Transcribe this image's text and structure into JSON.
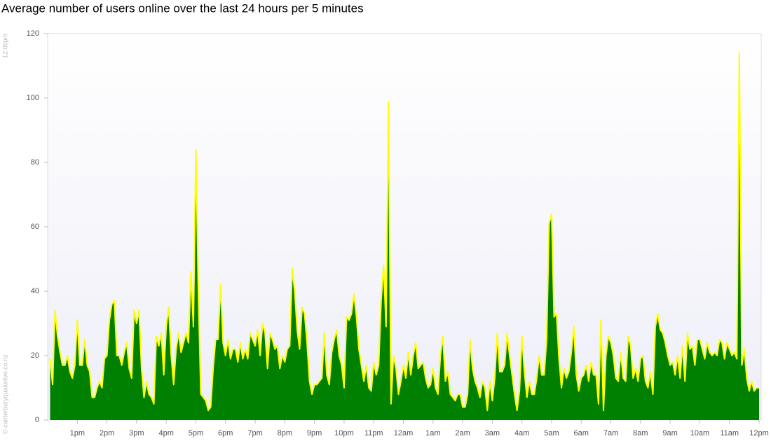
{
  "chart_data": {
    "type": "area",
    "title": "Average number of users online over the last 24 hours per 5 minutes",
    "timestamp": "12:05pm",
    "credit": "© canterburyquakelive.co.nz",
    "color": "#008000",
    "line_color": "#ffff00",
    "ylim": [
      0,
      120
    ],
    "yticks": [
      0,
      20,
      40,
      60,
      80,
      100,
      120
    ],
    "categories": [
      null,
      null,
      null,
      null,
      null,
      null,
      null,
      null,
      null,
      null,
      null,
      "1pm",
      null,
      null,
      null,
      null,
      null,
      null,
      null,
      null,
      null,
      null,
      null,
      "2pm",
      null,
      null,
      null,
      null,
      null,
      null,
      null,
      null,
      null,
      null,
      null,
      "3pm",
      null,
      null,
      null,
      null,
      null,
      null,
      null,
      null,
      null,
      null,
      null,
      "4pm",
      null,
      null,
      null,
      null,
      null,
      null,
      null,
      null,
      null,
      null,
      null,
      "5pm",
      null,
      null,
      null,
      null,
      null,
      null,
      null,
      null,
      null,
      null,
      null,
      "6pm",
      null,
      null,
      null,
      null,
      null,
      null,
      null,
      null,
      null,
      null,
      null,
      "7pm",
      null,
      null,
      null,
      null,
      null,
      null,
      null,
      null,
      null,
      null,
      null,
      "8pm",
      null,
      null,
      null,
      null,
      null,
      null,
      null,
      null,
      null,
      null,
      null,
      "9pm",
      null,
      null,
      null,
      null,
      null,
      null,
      null,
      null,
      null,
      null,
      null,
      "10pm",
      null,
      null,
      null,
      null,
      null,
      null,
      null,
      null,
      null,
      null,
      null,
      "11pm",
      null,
      null,
      null,
      null,
      null,
      null,
      null,
      null,
      null,
      null,
      null,
      "12am",
      null,
      null,
      null,
      null,
      null,
      null,
      null,
      null,
      null,
      null,
      null,
      "1am",
      null,
      null,
      null,
      null,
      null,
      null,
      null,
      null,
      null,
      null,
      null,
      "2am",
      null,
      null,
      null,
      null,
      null,
      null,
      null,
      null,
      null,
      null,
      null,
      "3am",
      null,
      null,
      null,
      null,
      null,
      null,
      null,
      null,
      null,
      null,
      null,
      "4am",
      null,
      null,
      null,
      null,
      null,
      null,
      null,
      null,
      null,
      null,
      null,
      "5am",
      null,
      null,
      null,
      null,
      null,
      null,
      null,
      null,
      null,
      null,
      null,
      "6am",
      null,
      null,
      null,
      null,
      null,
      null,
      null,
      null,
      null,
      null,
      null,
      "7am",
      null,
      null,
      null,
      null,
      null,
      null,
      null,
      null,
      null,
      null,
      null,
      "8am",
      null,
      null,
      null,
      null,
      null,
      null,
      null,
      null,
      null,
      null,
      null,
      "9am",
      null,
      null,
      null,
      null,
      null,
      null,
      null,
      null,
      null,
      null,
      null,
      "10am",
      null,
      null,
      null,
      null,
      null,
      null,
      null,
      null,
      null,
      null,
      null,
      "11am",
      null,
      null,
      null,
      null,
      null,
      null,
      null,
      null,
      null,
      null,
      null,
      "12pm"
    ],
    "values": [
      19,
      11,
      34,
      26,
      21,
      17,
      17,
      20,
      15,
      13,
      17,
      31,
      17,
      17,
      25,
      17,
      15,
      7,
      7,
      10,
      12,
      10,
      19,
      20,
      31,
      36,
      37,
      20,
      20,
      17,
      21,
      24,
      16,
      13,
      34,
      30,
      34,
      16,
      7,
      12,
      8,
      7,
      5,
      26,
      23,
      27,
      14,
      29,
      35,
      20,
      11,
      22,
      27,
      21,
      24,
      27,
      24,
      46,
      29,
      84,
      40,
      8,
      7,
      6,
      3,
      4,
      16,
      25,
      25,
      42,
      24,
      20,
      25,
      19,
      22,
      22,
      18,
      24,
      19,
      22,
      19,
      27,
      25,
      23,
      28,
      20,
      30,
      27,
      16,
      27,
      25,
      22,
      23,
      16,
      20,
      18,
      22,
      23,
      47,
      40,
      28,
      22,
      35,
      33,
      24,
      12,
      8,
      11,
      11,
      12,
      13,
      27,
      14,
      11,
      21,
      25,
      28,
      20,
      17,
      10,
      32,
      31,
      33,
      39,
      32,
      22,
      17,
      12,
      17,
      10,
      9,
      18,
      14,
      17,
      37,
      48,
      29,
      99,
      5,
      20,
      16,
      8,
      12,
      17,
      13,
      21,
      14,
      20,
      24,
      16,
      17,
      18,
      13,
      10,
      11,
      16,
      10,
      8,
      20,
      26,
      12,
      15,
      8,
      7,
      6,
      8,
      8,
      4,
      4,
      8,
      25,
      16,
      12,
      10,
      7,
      12,
      10,
      3,
      12,
      6,
      13,
      27,
      15,
      15,
      17,
      27,
      20,
      14,
      8,
      3,
      9,
      26,
      15,
      7,
      12,
      8,
      8,
      13,
      20,
      14,
      14,
      25,
      61,
      64,
      32,
      33,
      19,
      10,
      16,
      13,
      15,
      21,
      29,
      14,
      9,
      13,
      14,
      17,
      12,
      18,
      14,
      14,
      5,
      31,
      3,
      20,
      26,
      24,
      20,
      13,
      12,
      21,
      13,
      12,
      26,
      23,
      13,
      16,
      12,
      19,
      20,
      12,
      10,
      15,
      8,
      29,
      33,
      28,
      27,
      24,
      20,
      17,
      18,
      14,
      20,
      13,
      23,
      12,
      27,
      22,
      23,
      17,
      25,
      25,
      22,
      19,
      24,
      21,
      20,
      21,
      20,
      25,
      24,
      19,
      24,
      22,
      20,
      21,
      19,
      114,
      17,
      22,
      13,
      9,
      12,
      9,
      10,
      10
    ]
  }
}
